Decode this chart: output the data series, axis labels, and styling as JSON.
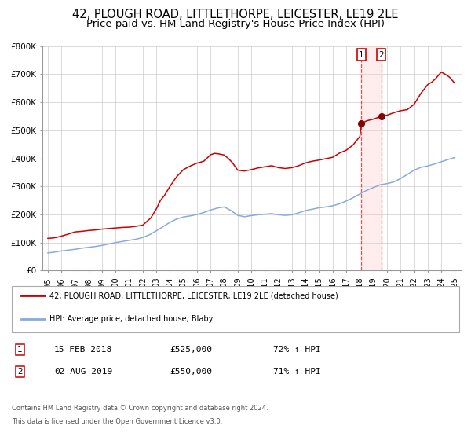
{
  "title": "42, PLOUGH ROAD, LITTLETHORPE, LEICESTER, LE19 2LE",
  "subtitle": "Price paid vs. HM Land Registry's House Price Index (HPI)",
  "title_fontsize": 10.5,
  "subtitle_fontsize": 9.5,
  "ylim": [
    0,
    800000
  ],
  "yticks": [
    0,
    100000,
    200000,
    300000,
    400000,
    500000,
    600000,
    700000,
    800000
  ],
  "ytick_labels": [
    "£0",
    "£100K",
    "£200K",
    "£300K",
    "£400K",
    "£500K",
    "£600K",
    "£700K",
    "£800K"
  ],
  "xlim_start": 1994.6,
  "xlim_end": 2025.5,
  "xticks": [
    1995,
    1996,
    1997,
    1998,
    1999,
    2000,
    2001,
    2002,
    2003,
    2004,
    2005,
    2006,
    2007,
    2008,
    2009,
    2010,
    2011,
    2012,
    2013,
    2014,
    2015,
    2016,
    2017,
    2018,
    2019,
    2020,
    2021,
    2022,
    2023,
    2024,
    2025
  ],
  "red_line_color": "#cc0000",
  "blue_line_color": "#88aadd",
  "marker_color": "#880000",
  "vline_color": "#cc3333",
  "event1_x": 2018.12,
  "event2_x": 2019.58,
  "event1_price": 525000,
  "event2_price": 550000,
  "legend_label_red": "42, PLOUGH ROAD, LITTLETHORPE, LEICESTER, LE19 2LE (detached house)",
  "legend_label_blue": "HPI: Average price, detached house, Blaby",
  "table_row1": [
    "1",
    "15-FEB-2018",
    "£525,000",
    "72% ↑ HPI"
  ],
  "table_row2": [
    "2",
    "02-AUG-2019",
    "£550,000",
    "71% ↑ HPI"
  ],
  "footer1": "Contains HM Land Registry data © Crown copyright and database right 2024.",
  "footer2": "This data is licensed under the Open Government Licence v3.0.",
  "background_color": "#ffffff",
  "grid_color": "#cccccc",
  "red_data_x": [
    1995.0,
    1995.3,
    1995.6,
    1996.0,
    1996.5,
    1997.0,
    1997.5,
    1998.0,
    1998.5,
    1999.0,
    1999.5,
    2000.0,
    2000.5,
    2001.0,
    2001.5,
    2002.0,
    2002.3,
    2002.6,
    2003.0,
    2003.3,
    2003.6,
    2004.0,
    2004.5,
    2005.0,
    2005.5,
    2006.0,
    2006.5,
    2007.0,
    2007.3,
    2007.6,
    2008.0,
    2008.3,
    2008.6,
    2009.0,
    2009.5,
    2010.0,
    2010.5,
    2011.0,
    2011.5,
    2012.0,
    2012.5,
    2013.0,
    2013.5,
    2014.0,
    2014.5,
    2015.0,
    2015.5,
    2016.0,
    2016.5,
    2017.0,
    2017.5,
    2018.0,
    2018.12,
    2018.5,
    2019.0,
    2019.58,
    2020.0,
    2020.5,
    2021.0,
    2021.5,
    2022.0,
    2022.5,
    2023.0,
    2023.3,
    2023.6,
    2024.0,
    2024.3,
    2024.6,
    2025.0
  ],
  "red_data_y": [
    115000,
    116000,
    118000,
    123000,
    130000,
    138000,
    140000,
    143000,
    145000,
    148000,
    150000,
    152000,
    154000,
    155000,
    158000,
    162000,
    175000,
    188000,
    220000,
    250000,
    268000,
    300000,
    335000,
    360000,
    373000,
    383000,
    390000,
    413000,
    418000,
    416000,
    412000,
    400000,
    385000,
    358000,
    355000,
    360000,
    366000,
    370000,
    374000,
    367000,
    364000,
    367000,
    374000,
    384000,
    390000,
    394000,
    399000,
    404000,
    419000,
    429000,
    448000,
    478000,
    525000,
    534000,
    540000,
    550000,
    554000,
    563000,
    570000,
    574000,
    593000,
    632000,
    663000,
    672000,
    685000,
    708000,
    700000,
    690000,
    668000
  ],
  "blue_data_x": [
    1995.0,
    1995.5,
    1996.0,
    1996.5,
    1997.0,
    1997.5,
    1998.0,
    1998.5,
    1999.0,
    1999.5,
    2000.0,
    2000.5,
    2001.0,
    2001.5,
    2002.0,
    2002.5,
    2003.0,
    2003.5,
    2004.0,
    2004.5,
    2005.0,
    2005.5,
    2006.0,
    2006.5,
    2007.0,
    2007.5,
    2008.0,
    2008.5,
    2009.0,
    2009.5,
    2010.0,
    2010.5,
    2011.0,
    2011.5,
    2012.0,
    2012.5,
    2013.0,
    2013.5,
    2014.0,
    2014.5,
    2015.0,
    2015.5,
    2016.0,
    2016.5,
    2017.0,
    2017.5,
    2018.0,
    2018.5,
    2019.0,
    2019.5,
    2020.0,
    2020.5,
    2021.0,
    2021.5,
    2022.0,
    2022.5,
    2023.0,
    2023.5,
    2024.0,
    2024.5,
    2025.0
  ],
  "blue_data_y": [
    63000,
    66000,
    70000,
    73000,
    76000,
    80000,
    83000,
    86000,
    90000,
    95000,
    100000,
    104000,
    108000,
    112000,
    118000,
    128000,
    142000,
    157000,
    172000,
    184000,
    191000,
    195000,
    200000,
    207000,
    216000,
    223000,
    227000,
    214000,
    197000,
    192000,
    196000,
    199000,
    201000,
    203000,
    199000,
    197000,
    199000,
    206000,
    214000,
    219000,
    224000,
    227000,
    231000,
    238000,
    248000,
    260000,
    273000,
    286000,
    296000,
    306000,
    310000,
    316000,
    328000,
    343000,
    358000,
    368000,
    373000,
    380000,
    388000,
    396000,
    403000
  ]
}
